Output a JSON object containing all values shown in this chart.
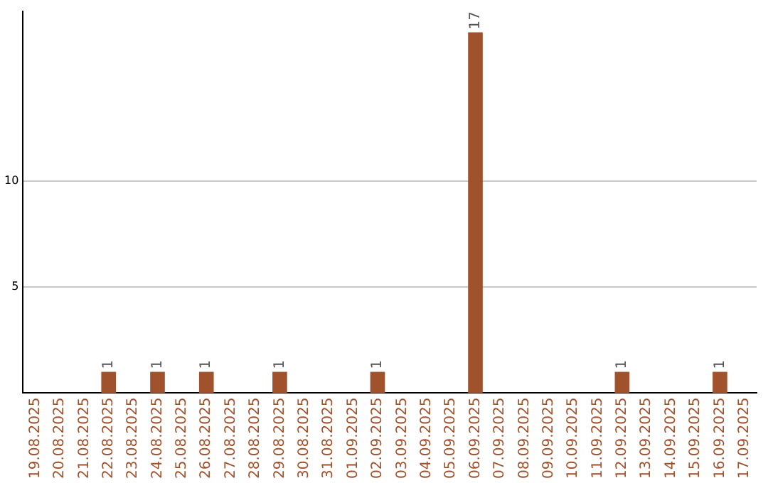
{
  "chart_data": {
    "type": "bar",
    "categories": [
      "19.08.2025",
      "20.08.2025",
      "21.08.2025",
      "22.08.2025",
      "23.08.2025",
      "24.08.2025",
      "25.08.2025",
      "26.08.2025",
      "27.08.2025",
      "28.08.2025",
      "29.08.2025",
      "30.08.2025",
      "31.08.2025",
      "01.09.2025",
      "02.09.2025",
      "03.09.2025",
      "04.09.2025",
      "05.09.2025",
      "06.09.2025",
      "07.09.2025",
      "08.09.2025",
      "09.09.2025",
      "10.09.2025",
      "11.09.2025",
      "12.09.2025",
      "13.09.2025",
      "14.09.2025",
      "15.09.2025",
      "16.09.2025",
      "17.09.2025"
    ],
    "values": [
      0,
      0,
      0,
      1,
      0,
      1,
      0,
      1,
      0,
      0,
      1,
      0,
      0,
      0,
      1,
      0,
      0,
      0,
      17,
      0,
      0,
      0,
      0,
      0,
      1,
      0,
      0,
      0,
      1,
      0
    ],
    "value_labels": [
      null,
      null,
      null,
      "1",
      null,
      "1",
      null,
      "1",
      null,
      null,
      "1",
      null,
      null,
      null,
      "1",
      null,
      null,
      null,
      "17",
      null,
      null,
      null,
      null,
      null,
      "1",
      null,
      null,
      null,
      "1",
      null
    ],
    "color": "#a0522d",
    "ylim": [
      0,
      18
    ],
    "yticks": [
      5,
      10
    ],
    "grid": "y"
  }
}
